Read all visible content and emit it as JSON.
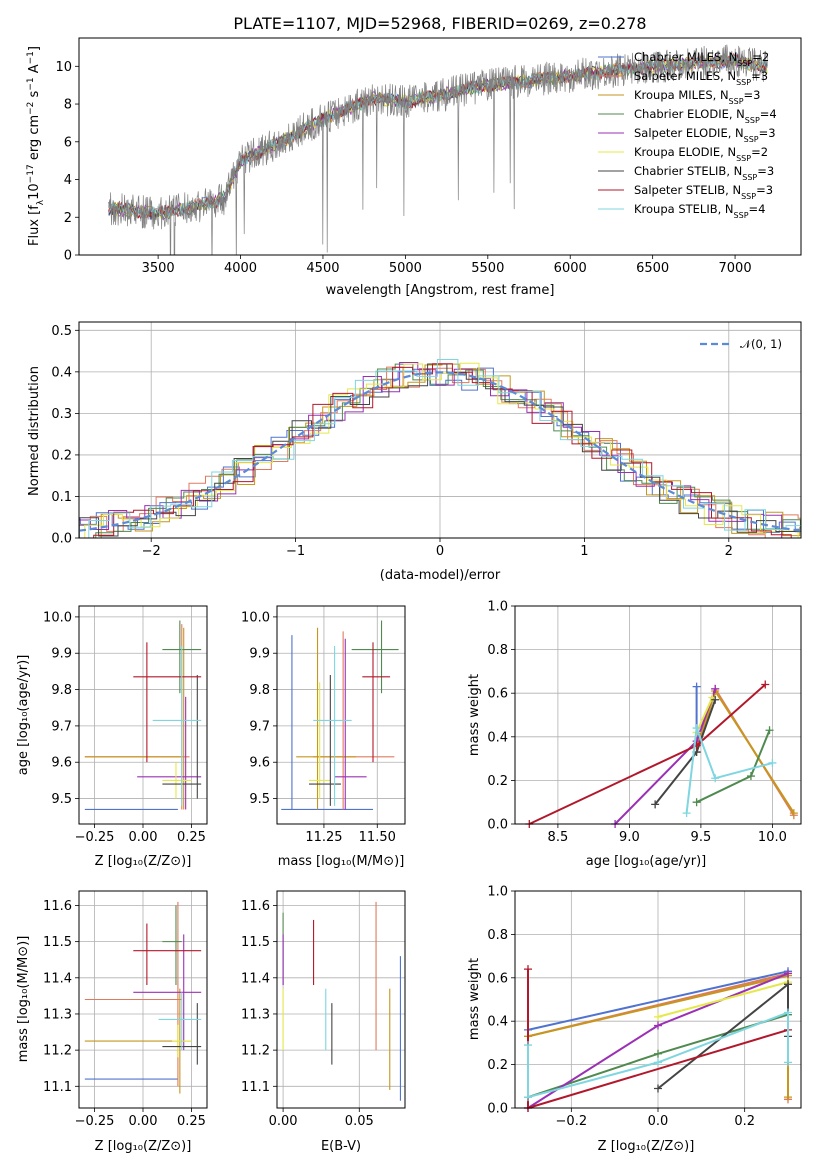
{
  "title": "PLATE=1107, MJD=52968, FIBERID=0269, z=0.278",
  "spectrum": {
    "xlabel": "wavelength [Angstrom, rest frame]",
    "ylabel": "Flux [f_λ 10⁻¹⁷ erg cm⁻² s⁻¹ A⁻¹]",
    "xlim": [
      3020,
      7400
    ],
    "ylim": [
      0,
      11.5
    ],
    "xticks": [
      3500,
      4000,
      4500,
      5000,
      5500,
      6000,
      6500,
      7000
    ],
    "yticks": [
      0,
      2,
      4,
      6,
      8,
      10
    ],
    "data_trend": [
      [
        3200,
        2.5
      ],
      [
        3500,
        2.2
      ],
      [
        3700,
        2.5
      ],
      [
        3900,
        3.0
      ],
      [
        4000,
        5.0
      ],
      [
        4200,
        5.8
      ],
      [
        4500,
        7.2
      ],
      [
        4800,
        8.3
      ],
      [
        5000,
        8.1
      ],
      [
        5500,
        9.0
      ],
      [
        6000,
        9.5
      ],
      [
        6500,
        10.0
      ],
      [
        7000,
        10.3
      ],
      [
        7200,
        10.0
      ]
    ],
    "legend": [
      {
        "label": "Chabrier MILES, N",
        "sub": "SSP",
        "n": "=2",
        "color": "#4f73cf"
      },
      {
        "label": "Salpeter MILES, N",
        "sub": "SSP",
        "n": "=3",
        "color": "#e07a5f"
      },
      {
        "label": "Kroupa MILES, N",
        "sub": "SSP",
        "n": "=3",
        "color": "#c6961f"
      },
      {
        "label": "Chabrier ELODIE, N",
        "sub": "SSP",
        "n": "=4",
        "color": "#4f8a4f"
      },
      {
        "label": "Salpeter ELODIE, N",
        "sub": "SSP",
        "n": "=3",
        "color": "#9b30b5"
      },
      {
        "label": "Kroupa ELODIE, N",
        "sub": "SSP",
        "n": "=2",
        "color": "#e5e84a"
      },
      {
        "label": "Chabrier STELIB, N",
        "sub": "SSP",
        "n": "=3",
        "color": "#444444"
      },
      {
        "label": "Salpeter STELIB, N",
        "sub": "SSP",
        "n": "=3",
        "color": "#b2182b"
      },
      {
        "label": "Kroupa STELIB, N",
        "sub": "SSP",
        "n": "=4",
        "color": "#7fd6e0"
      }
    ]
  },
  "hist": {
    "xlabel": "(data-model)/error",
    "ylabel": "Normed distribution",
    "xlim": [
      -2.5,
      2.5
    ],
    "ylim": [
      0,
      0.52
    ],
    "xticks": [
      -2,
      -1,
      0,
      1,
      2
    ],
    "yticks": [
      0.0,
      0.1,
      0.2,
      0.3,
      0.4,
      0.5
    ],
    "legend": "𝒩(0, 1)",
    "gauss_color": "#5b8bd6"
  },
  "chart_data": [
    {
      "type": "line",
      "title": "PLATE=1107, MJD=52968, FIBERID=0269, z=0.278",
      "xlabel": "wavelength [Angstrom, rest frame]",
      "ylabel": "Flux",
      "xlim": [
        3020,
        7400
      ],
      "ylim": [
        0,
        11.5
      ]
    },
    {
      "type": "line",
      "xlabel": "(data-model)/error",
      "ylabel": "Normed distribution",
      "xlim": [
        -2.5,
        2.5
      ],
      "ylim": [
        0,
        0.52
      ]
    },
    {
      "type": "scatter",
      "xlabel": "Z [log10(Z/Zsun)]",
      "ylabel": "age [log10(age/yr)]",
      "xlim": [
        -0.33,
        0.33
      ],
      "ylim": [
        9.43,
        10.03
      ],
      "points": [
        {
          "x": -0.06,
          "y": 9.47,
          "x0": -0.3,
          "x1": 0.18,
          "y0": 9.47,
          "y1": 9.47,
          "yerr": [
            9.47,
            9.47
          ],
          "color": "#4f73cf"
        },
        {
          "x": 0.2,
          "y": 9.615,
          "x0": -0.3,
          "x1": 0.24,
          "y0": 9.47,
          "y1": 9.98,
          "color": "#e07a5f"
        }
      ]
    },
    {
      "type": "scatter",
      "xlabel": "age [log10(age/yr)]",
      "ylabel": "mass weight",
      "xlim": [
        8.2,
        10.2
      ],
      "ylim": [
        0,
        1.0
      ]
    },
    {
      "type": "scatter",
      "xlabel": "Z [log10(Z/Zsun)]",
      "ylabel": "mass weight",
      "xlim": [
        -0.33,
        0.33
      ],
      "ylim": [
        0,
        1.0
      ]
    }
  ],
  "panels": {
    "z_age": {
      "xlabel": "Z [log₁₀(Z/Z⊙)]",
      "ylabel": "age  [log₁₀(age/yr)]",
      "xticks": [
        "−0.25",
        "0.00",
        "0.25"
      ],
      "yticks": [
        "9.5",
        "9.6",
        "9.7",
        "9.8",
        "9.9",
        "10.0"
      ]
    },
    "mass_age": {
      "xlabel": "mass [log₁₀(M/M⊙)]",
      "xticks": [
        "11.25",
        "11.50"
      ],
      "yticks": [
        "9.5",
        "9.6",
        "9.7",
        "9.8",
        "9.9",
        "10.0"
      ]
    },
    "age_mw": {
      "xlabel": "age  [log₁₀(age/yr)]",
      "ylabel": "mass weight",
      "xticks": [
        "8.5",
        "9.0",
        "9.5",
        "10.0"
      ],
      "yticks": [
        "0.0",
        "0.2",
        "0.4",
        "0.6",
        "0.8",
        "1.0"
      ]
    },
    "z_mass": {
      "xlabel": "Z [log₁₀(Z/Z⊙)]",
      "ylabel": "mass [log₁₀(M/M⊙)]",
      "xticks": [
        "−0.25",
        "0.00",
        "0.25"
      ],
      "yticks": [
        "11.1",
        "11.2",
        "11.3",
        "11.4",
        "11.5",
        "11.6"
      ]
    },
    "ebv_mass": {
      "xlabel": "E(B-V)",
      "xticks": [
        "0.00",
        "0.05"
      ],
      "yticks": [
        "11.1",
        "11.2",
        "11.3",
        "11.4",
        "11.5",
        "11.6"
      ]
    },
    "z_mw": {
      "xlabel": "Z [log₁₀(Z/Z⊙)]",
      "ylabel": "mass weight",
      "xticks": [
        "−0.2",
        "0.0",
        "0.2"
      ],
      "yticks": [
        "0.0",
        "0.2",
        "0.4",
        "0.6",
        "0.8",
        "1.0"
      ]
    }
  }
}
